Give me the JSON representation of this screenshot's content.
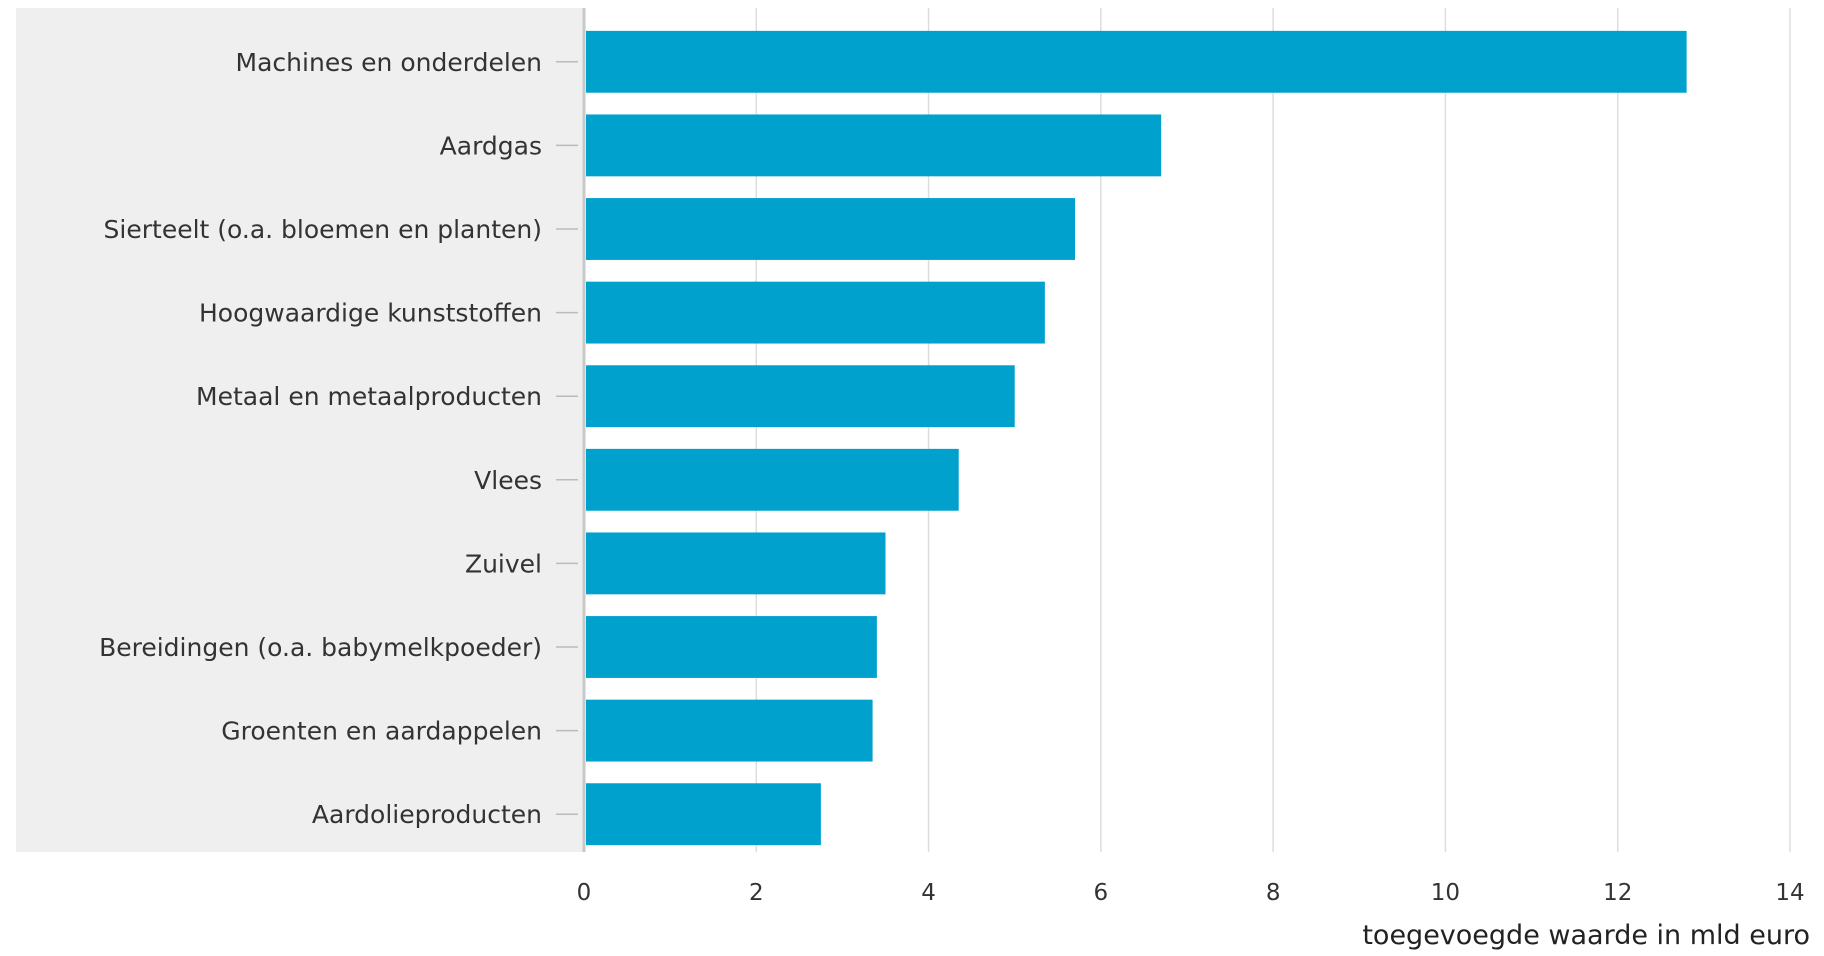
{
  "chart_data": {
    "type": "bar",
    "orientation": "horizontal",
    "title": "",
    "categories": [
      "Machines en onderdelen",
      "Aardgas",
      "Sierteelt (o.a. bloemen en planten)",
      "Hoogwaardige kunststoffen",
      "Metaal en metaalproducten",
      "Vlees",
      "Zuivel",
      "Bereidingen (o.a. babymelkpoeder)",
      "Groenten en aardappelen",
      "Aardolieproducten"
    ],
    "values": [
      12.8,
      6.7,
      5.7,
      5.35,
      5.0,
      4.35,
      3.5,
      3.4,
      3.35,
      2.75
    ],
    "xlabel": "toegevoegde waarde in mld euro",
    "ylabel": "",
    "xlim": [
      0,
      14
    ],
    "xticks": [
      "0",
      "2",
      "4",
      "6",
      "8",
      "10",
      "12",
      "14"
    ],
    "grid": "vertical",
    "colors": {
      "bar": "#00A1CD",
      "label_background": "#EFEFEF",
      "gridline": "#DDDDDD",
      "axis": "#C8C8C8"
    }
  }
}
